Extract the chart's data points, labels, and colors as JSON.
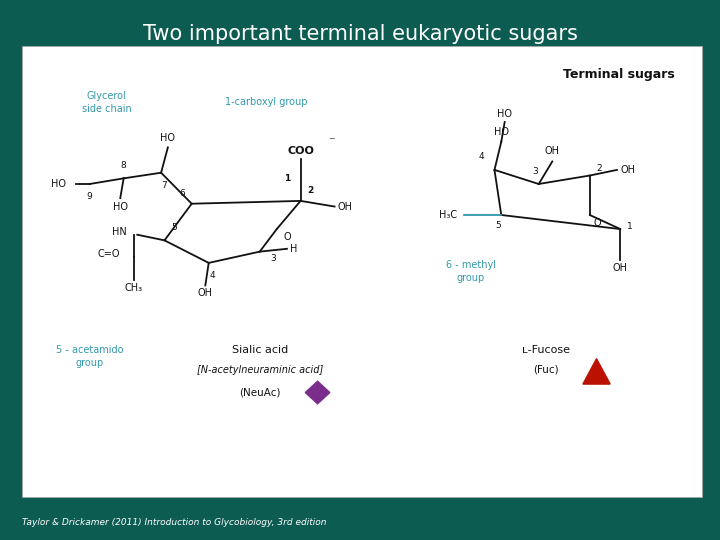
{
  "title": "Two important terminal eukaryotic sugars",
  "title_color": "#FFFFFF",
  "title_fontsize": 15,
  "bg_color": "#0D5C52",
  "panel_bg": "#FFFFFF",
  "citation": "Taylor & Drickamer (2011) Introduction to Glycobiology, 3rd edition",
  "citation_color": "#FFFFFF",
  "citation_fontsize": 6.5,
  "terminal_sugars_label": "Terminal sugars",
  "teal_color": "#3399AA",
  "black_color": "#111111",
  "diamond_color": "#7B2D8B",
  "triangle_color": "#BB1100"
}
